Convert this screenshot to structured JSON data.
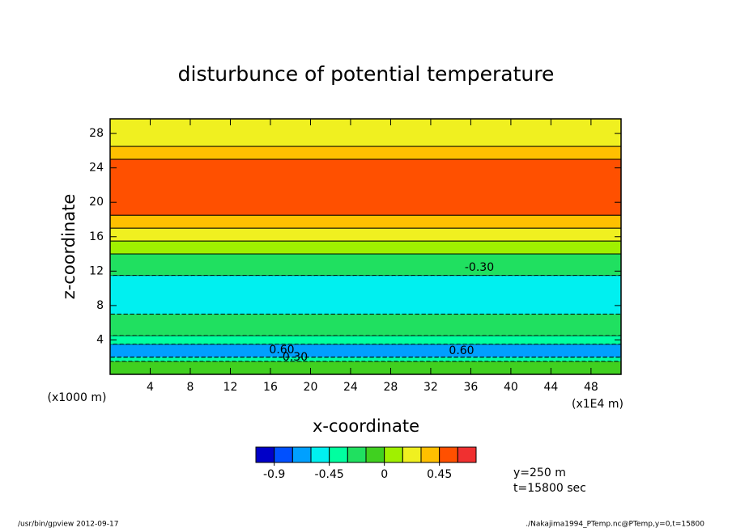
{
  "chart_data": {
    "type": "contour",
    "title": "disturbunce of potential temperature",
    "x_label": "x-coordinate",
    "y_label": "z-coordinate",
    "x_unit_label": "(x1E4 m)",
    "y_unit_label": "(x1000 m)",
    "xlim": [
      0,
      51
    ],
    "xticks": [
      4,
      8,
      12,
      16,
      20,
      24,
      28,
      32,
      36,
      40,
      44,
      48
    ],
    "ylim": [
      0,
      29.7
    ],
    "yticks": [
      4,
      8,
      12,
      16,
      20,
      24,
      28
    ],
    "bands": {
      "z_edges": [
        0,
        1.5,
        2,
        3.5,
        4.5,
        7,
        11.5,
        14,
        15.5,
        17,
        18.5,
        25,
        26.5,
        29.7
      ],
      "values": [
        -0.1,
        -0.45,
        -0.75,
        -0.45,
        -0.3,
        -0.5,
        -0.2,
        0.05,
        0.2,
        0.35,
        0.5,
        0.35,
        0.2
      ]
    },
    "contour_labels": [
      "-0.30",
      "0.60",
      "-0.30",
      "0.60"
    ],
    "colorbar": {
      "levels": [
        -1.05,
        -0.9,
        -0.75,
        -0.6,
        -0.45,
        -0.3,
        -0.15,
        0,
        0.15,
        0.3,
        0.45,
        0.6,
        0.75
      ],
      "colors": [
        "#0000c8",
        "#0050ff",
        "#00a0ff",
        "#00f0f0",
        "#00ffa0",
        "#20e060",
        "#40d020",
        "#a0f000",
        "#f0f020",
        "#ffc000",
        "#ff5000",
        "#f03030"
      ],
      "ticks": [
        -0.9,
        -0.45,
        0,
        0.45
      ]
    },
    "annotations": [
      "y=250 m",
      "t=15800 sec"
    ],
    "footer_left": "/usr/bin/gpview  2012-09-17",
    "footer_right": "./Nakajima1994_PTemp.nc@PTemp,y=0,t=15800"
  }
}
